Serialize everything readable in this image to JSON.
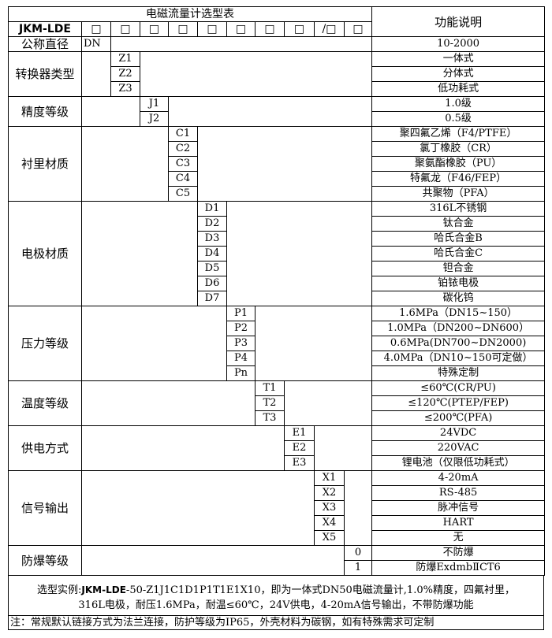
{
  "title": "电磁流量计选型表",
  "function_header": "功能说明",
  "model_prefix": "JKM-LDE",
  "box_slots": [
    "□",
    "□",
    "□",
    "□",
    "□",
    "□",
    "□",
    "□",
    "/□",
    "□"
  ],
  "groups": [
    {
      "label": "公称直径",
      "col": 1,
      "items": [
        {
          "code": "DN",
          "desc": "10-2000"
        }
      ]
    },
    {
      "label": "转换器类型",
      "col": 2,
      "items": [
        {
          "code": "Z1",
          "desc": "一体式"
        },
        {
          "code": "Z2",
          "desc": "分体式"
        },
        {
          "code": "Z3",
          "desc": "低功耗式"
        }
      ]
    },
    {
      "label": "精度等级",
      "col": 3,
      "items": [
        {
          "code": "J1",
          "desc": "1.0级"
        },
        {
          "code": "J2",
          "desc": "0.5级"
        }
      ]
    },
    {
      "label": "衬里材质",
      "col": 4,
      "items": [
        {
          "code": "C1",
          "desc": "聚四氟乙烯（F4/PTFE）"
        },
        {
          "code": "C2",
          "desc": "氯丁橡胶（CR）"
        },
        {
          "code": "C3",
          "desc": "聚氨酯橡胶（PU）"
        },
        {
          "code": "C4",
          "desc": "特氟龙（F46/FEP）"
        },
        {
          "code": "C5",
          "desc": "共聚物（PFA）"
        }
      ]
    },
    {
      "label": "电极材质",
      "col": 5,
      "items": [
        {
          "code": "D1",
          "desc": "316L不锈钢"
        },
        {
          "code": "D2",
          "desc": "钛合金"
        },
        {
          "code": "D3",
          "desc": "哈氏合金B"
        },
        {
          "code": "D4",
          "desc": "哈氏合金C"
        },
        {
          "code": "D5",
          "desc": "钽合金"
        },
        {
          "code": "D6",
          "desc": "铂铱电极"
        },
        {
          "code": "D7",
          "desc": "碳化钨"
        }
      ]
    },
    {
      "label": "压力等级",
      "col": 6,
      "items": [
        {
          "code": "P1",
          "desc": "1.6MPa（DN15~150）"
        },
        {
          "code": "P2",
          "desc": "1.0MPa（DN200~DN600）"
        },
        {
          "code": "P3",
          "desc": "0.6MPa(DN700~DN2000)"
        },
        {
          "code": "P4",
          "desc": "4.0MPa（DN10~150可定做）"
        },
        {
          "code": "Pn",
          "desc": "特殊定制"
        }
      ]
    },
    {
      "label": "温度等级",
      "col": 7,
      "items": [
        {
          "code": "T1",
          "desc": "≤60℃(CR/PU)"
        },
        {
          "code": "T2",
          "desc": "≤120℃(PTEP/FEP)"
        },
        {
          "code": "T3",
          "desc": "≤200℃(PFA)"
        }
      ]
    },
    {
      "label": "供电方式",
      "col": 8,
      "items": [
        {
          "code": "E1",
          "desc": "24VDC"
        },
        {
          "code": "E2",
          "desc": "220VAC"
        },
        {
          "code": "E3",
          "desc": "锂电池（仅限低功耗式）"
        }
      ]
    },
    {
      "label": "信号输出",
      "col": 9,
      "items": [
        {
          "code": "X1",
          "desc": "4-20mA"
        },
        {
          "code": "X2",
          "desc": "RS-485"
        },
        {
          "code": "X3",
          "desc": "脉冲信号"
        },
        {
          "code": "X4",
          "desc": "HART"
        },
        {
          "code": "X5",
          "desc": "无"
        }
      ]
    },
    {
      "label": "防爆等级",
      "col": 10,
      "items": [
        {
          "code": "0",
          "desc": "不防爆"
        },
        {
          "code": "1",
          "desc": "防爆ExdmbⅡCT6"
        }
      ]
    }
  ],
  "example_prefix": "选型实例:",
  "example_model": "JKM-LDE",
  "example_line1": "-50-Z1J1C1D1P1T1E1X10，即为一体式DN50电磁流量计,1.0%精度，四氟衬里，",
  "example_line2": "316L电极，耐压1.6MPa，耐温≤60℃，24V供电，4-20mA信号输出，不带防爆功能",
  "note": "注：常规默认链接方式为法兰连接，防护等级为IP65，外壳材料为碳钢，如有特殊需求可定制"
}
